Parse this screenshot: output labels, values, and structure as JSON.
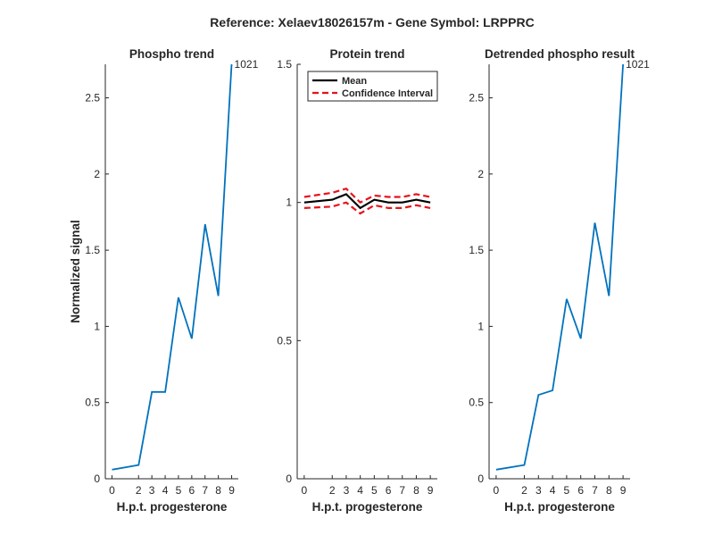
{
  "figure_title": "Reference:  Xelaev18026157m - Gene Symbol:  LRPPRC",
  "colors": {
    "series": "#0072BD",
    "mean": "#000000",
    "ci": "#E8121C",
    "axis": "#262626"
  },
  "chart_data": [
    {
      "type": "line",
      "title": "Phospho trend",
      "xlabel": "H.p.t. progesterone",
      "ylabel": "Normalized signal",
      "x": [
        0,
        2,
        3,
        4,
        5,
        6,
        7,
        8,
        9
      ],
      "xlim": [
        -0.5,
        9.5
      ],
      "ylim": [
        0,
        2.72
      ],
      "yticks": [
        0,
        0.5,
        1,
        1.5,
        2,
        2.5
      ],
      "ytick_labels": [
        "0",
        "0.5",
        "1",
        "1.5",
        "2",
        "2.5"
      ],
      "series": [
        {
          "name": "phospho",
          "values": [
            0.06,
            0.09,
            0.57,
            0.57,
            1.19,
            0.92,
            1.67,
            1.2,
            2.72
          ]
        }
      ],
      "annotation": "1021"
    },
    {
      "type": "line",
      "title": "Protein trend",
      "xlabel": "H.p.t. progesterone",
      "ylabel": "",
      "x": [
        0,
        2,
        3,
        4,
        5,
        6,
        7,
        8,
        9
      ],
      "xlim": [
        -0.5,
        9.5
      ],
      "ylim": [
        0,
        1.5
      ],
      "yticks": [
        0,
        0.5,
        1,
        1.5
      ],
      "ytick_labels": [
        "0",
        "0.5",
        "1",
        "1.5"
      ],
      "legend": [
        "Mean",
        "Confidence Interval"
      ],
      "legend_position": "top-left",
      "series": [
        {
          "name": "Mean",
          "values": [
            1.0,
            1.01,
            1.03,
            0.98,
            1.01,
            1.0,
            1.0,
            1.01,
            1.0
          ]
        },
        {
          "name": "CI upper",
          "values": [
            1.02,
            1.035,
            1.05,
            1.0,
            1.025,
            1.02,
            1.02,
            1.03,
            1.02
          ]
        },
        {
          "name": "CI lower",
          "values": [
            0.98,
            0.985,
            1.0,
            0.96,
            0.99,
            0.98,
            0.98,
            0.99,
            0.98
          ]
        }
      ]
    },
    {
      "type": "line",
      "title": "Detrended phospho result",
      "xlabel": "H.p.t. progesterone",
      "ylabel": "",
      "x": [
        0,
        2,
        3,
        4,
        5,
        6,
        7,
        8,
        9
      ],
      "xlim": [
        -0.5,
        9.5
      ],
      "ylim": [
        0,
        2.72
      ],
      "yticks": [
        0,
        0.5,
        1,
        1.5,
        2,
        2.5
      ],
      "ytick_labels": [
        "0",
        "0.5",
        "1",
        "1.5",
        "2",
        "2.5"
      ],
      "series": [
        {
          "name": "detrended",
          "values": [
            0.06,
            0.09,
            0.55,
            0.58,
            1.18,
            0.92,
            1.68,
            1.2,
            2.72
          ]
        }
      ],
      "annotation": "1021"
    }
  ]
}
